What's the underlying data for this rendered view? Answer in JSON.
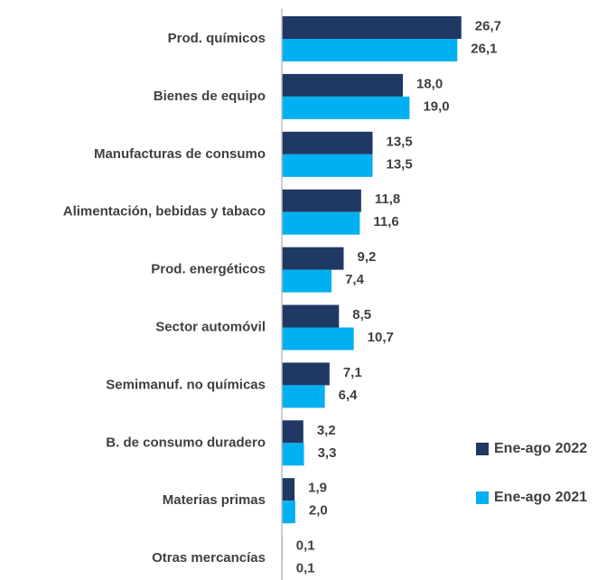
{
  "chart_data": {
    "type": "bar",
    "orientation": "horizontal",
    "categories": [
      "Prod. químicos",
      "Bienes de equipo",
      "Manufacturas de consumo",
      "Alimentación, bebidas y tabaco",
      "Prod. energéticos",
      "Sector automóvil",
      "Semimanuf. no químicas",
      "B. de consumo duradero",
      "Materias primas",
      "Otras mercancías"
    ],
    "series": [
      {
        "name": "Ene-ago 2022",
        "color": "#1f3864",
        "values": [
          26.7,
          18.0,
          13.5,
          11.8,
          9.2,
          8.5,
          7.1,
          3.2,
          1.9,
          0.1
        ],
        "value_labels": [
          "26,7",
          "18,0",
          "13,5",
          "11,8",
          "9,2",
          "8,5",
          "7,1",
          "3,2",
          "1,9",
          "0,1"
        ]
      },
      {
        "name": "Ene-ago 2021",
        "color": "#00b0f0",
        "values": [
          26.1,
          19.0,
          13.5,
          11.6,
          7.4,
          10.7,
          6.4,
          3.3,
          2.0,
          0.1
        ],
        "value_labels": [
          "26,1",
          "19,0",
          "13,5",
          "11,6",
          "7,4",
          "10,7",
          "6,4",
          "3,3",
          "2,0",
          "0,1"
        ]
      }
    ],
    "xlim": [
      0,
      45
    ],
    "legend": "lower right"
  }
}
